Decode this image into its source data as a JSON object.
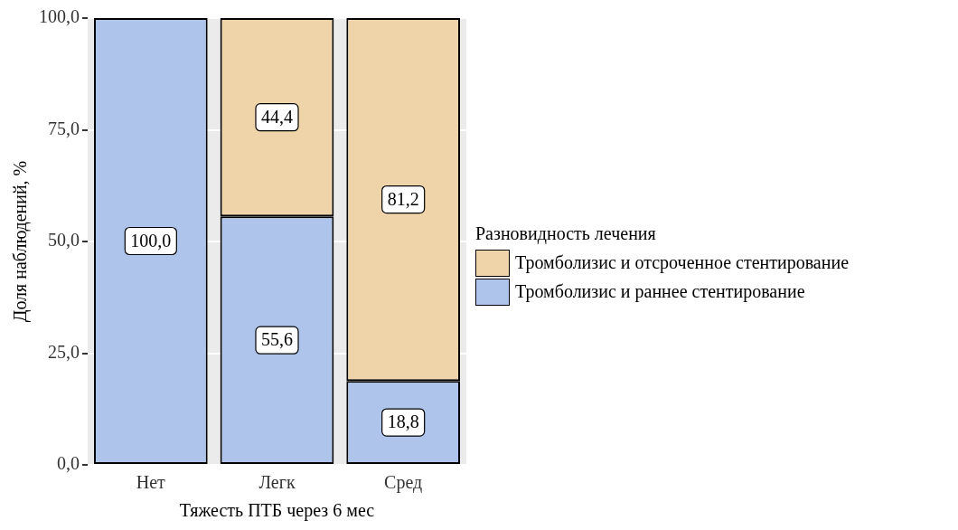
{
  "chart_data": {
    "type": "bar",
    "stacked": true,
    "xlabel": "Тяжесть ПТБ через 6 мес",
    "ylabel": "Доля наблюдений, %",
    "legend_title": "Разновидность лечения",
    "categories": [
      "Нет",
      "Легк",
      "Сред"
    ],
    "series": [
      {
        "name": "Тромболизис и раннее стентирование",
        "color": "#aec4ea",
        "values": [
          100.0,
          55.6,
          18.8
        ],
        "value_labels": [
          "100,0",
          "55,6",
          "18,8"
        ]
      },
      {
        "name": "Тромболизис и отсроченное стентирование",
        "color": "#efd4a9",
        "values": [
          0,
          44.4,
          81.2
        ],
        "value_labels": [
          null,
          "44,4",
          "81,2"
        ]
      }
    ],
    "ylim": [
      0,
      100
    ],
    "yticks": [
      {
        "value": 0,
        "label": "0,0"
      },
      {
        "value": 25,
        "label": "25,0"
      },
      {
        "value": 50,
        "label": "50,0"
      },
      {
        "value": 75,
        "label": "75,0"
      },
      {
        "value": 100,
        "label": "100,0"
      }
    ],
    "grid": "y",
    "legend": "right"
  }
}
